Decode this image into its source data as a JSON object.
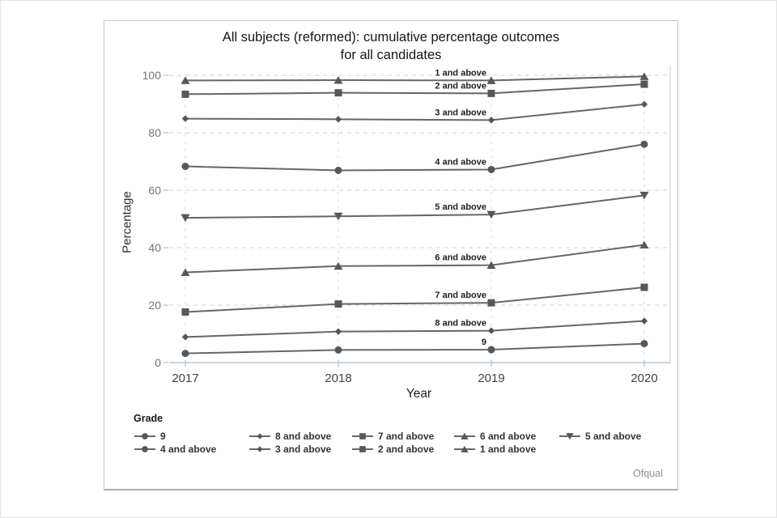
{
  "footer": {
    "source_label": "Ofqual"
  },
  "chart_data": {
    "type": "line",
    "title_line1": "All subjects (reformed): cumulative percentage outcomes",
    "title_line2": "for all candidates",
    "xlabel": "Year",
    "ylabel": "Percentage",
    "x": [
      "2017",
      "2018",
      "2019",
      "2020"
    ],
    "y_ticks": [
      0,
      20,
      40,
      60,
      80,
      100
    ],
    "ylim": [
      0,
      100
    ],
    "grid": "dashed horizontal and vertical gridlines",
    "legend_title": "Grade",
    "legend_position": "bottom-left, two rows of five columns",
    "line_color": "#666666",
    "marker_color": "#575757",
    "grid_color_h": "#c7d3e6",
    "grid_color_v": "#d6dce5",
    "axis_color": "#b3c6e0",
    "series": [
      {
        "name": "9",
        "marker": "circle",
        "values": [
          3.2,
          4.4,
          4.5,
          6.6
        ]
      },
      {
        "name": "8 and above",
        "marker": "diamond",
        "values": [
          8.9,
          10.8,
          11.1,
          14.5
        ]
      },
      {
        "name": "7 and above",
        "marker": "square",
        "values": [
          17.6,
          20.4,
          20.8,
          26.2
        ]
      },
      {
        "name": "6 and above",
        "marker": "triangle-up",
        "values": [
          31.4,
          33.6,
          33.9,
          41.0
        ]
      },
      {
        "name": "5 and above",
        "marker": "triangle-down",
        "values": [
          50.4,
          50.9,
          51.5,
          58.2
        ]
      },
      {
        "name": "4 and above",
        "marker": "circle",
        "values": [
          68.3,
          66.9,
          67.2,
          76.0
        ]
      },
      {
        "name": "3 and above",
        "marker": "diamond",
        "values": [
          84.9,
          84.7,
          84.4,
          89.9
        ]
      },
      {
        "name": "2 and above",
        "marker": "square",
        "values": [
          93.4,
          93.9,
          93.7,
          96.9
        ]
      },
      {
        "name": "1 and above",
        "marker": "triangle-up",
        "values": [
          98.2,
          98.3,
          98.2,
          99.6
        ]
      }
    ],
    "inline_labels_at_x": "2019"
  }
}
